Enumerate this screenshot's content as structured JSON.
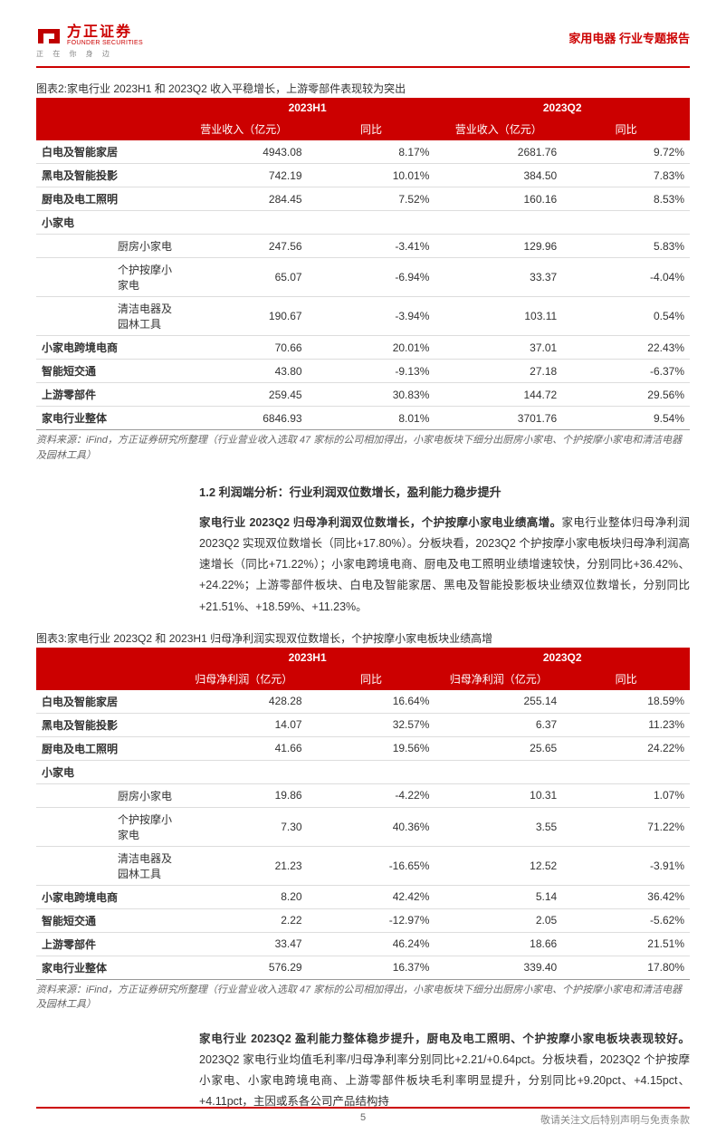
{
  "header": {
    "logo_cn": "方正证券",
    "logo_en": "FOUNDER SECURITIES",
    "logo_tagline": "正 在 你 身 边",
    "doc_type": "家用电器 行业专题报告"
  },
  "figure2": {
    "title": "图表2:家电行业 2023H1 和 2023Q2 收入平稳增长，上游零部件表现较为突出",
    "periods": [
      "2023H1",
      "2023Q2"
    ],
    "metrics": [
      "营业收入（亿元）",
      "同比",
      "营业收入（亿元）",
      "同比"
    ],
    "rows": [
      {
        "label": "白电及智能家居",
        "sub": false,
        "v": [
          "4943.08",
          "8.17%",
          "2681.76",
          "9.72%"
        ]
      },
      {
        "label": "黑电及智能投影",
        "sub": false,
        "v": [
          "742.19",
          "10.01%",
          "384.50",
          "7.83%"
        ]
      },
      {
        "label": "厨电及电工照明",
        "sub": false,
        "v": [
          "284.45",
          "7.52%",
          "160.16",
          "8.53%"
        ]
      },
      {
        "label": "小家电",
        "sub": false,
        "section": true,
        "v": [
          "",
          "",
          "",
          ""
        ]
      },
      {
        "label": "厨房小家电",
        "sub": true,
        "v": [
          "247.56",
          "-3.41%",
          "129.96",
          "5.83%"
        ]
      },
      {
        "label": "个护按摩小家电",
        "sub": true,
        "v": [
          "65.07",
          "-6.94%",
          "33.37",
          "-4.04%"
        ]
      },
      {
        "label": "清洁电器及园林工具",
        "sub": true,
        "v": [
          "190.67",
          "-3.94%",
          "103.11",
          "0.54%"
        ]
      },
      {
        "label": "小家电跨境电商",
        "sub": false,
        "v": [
          "70.66",
          "20.01%",
          "37.01",
          "22.43%"
        ]
      },
      {
        "label": "智能短交通",
        "sub": false,
        "v": [
          "43.80",
          "-9.13%",
          "27.18",
          "-6.37%"
        ]
      },
      {
        "label": "上游零部件",
        "sub": false,
        "v": [
          "259.45",
          "30.83%",
          "144.72",
          "29.56%"
        ]
      },
      {
        "label": "家电行业整体",
        "sub": false,
        "v": [
          "6846.93",
          "8.01%",
          "3701.76",
          "9.54%"
        ]
      }
    ],
    "source": "资料来源：iFind，方正证券研究所整理（行业营业收入选取 47 家标的公司相加得出，小家电板块下细分出厨房小家电、个护按摩小家电和清洁电器及园林工具）"
  },
  "section12": {
    "heading": "1.2 利润端分析：行业利润双位数增长，盈利能力稳步提升",
    "para1_bold": "家电行业 2023Q2 归母净利润双位数增长，个护按摩小家电业绩高增。",
    "para1_rest": "家电行业整体归母净利润 2023Q2 实现双位数增长（同比+17.80%）。分板块看，2023Q2 个护按摩小家电板块归母净利润高速增长（同比+71.22%）；小家电跨境电商、厨电及电工照明业绩增速较快，分别同比+36.42%、+24.22%；上游零部件板块、白电及智能家居、黑电及智能投影板块业绩双位数增长，分别同比+21.51%、+18.59%、+11.23%。"
  },
  "figure3": {
    "title": "图表3:家电行业 2023Q2 和 2023H1 归母净利润实现双位数增长，个护按摩小家电板块业绩高增",
    "periods": [
      "2023H1",
      "2023Q2"
    ],
    "metrics": [
      "归母净利润（亿元）",
      "同比",
      "归母净利润（亿元）",
      "同比"
    ],
    "rows": [
      {
        "label": "白电及智能家居",
        "sub": false,
        "v": [
          "428.28",
          "16.64%",
          "255.14",
          "18.59%"
        ]
      },
      {
        "label": "黑电及智能投影",
        "sub": false,
        "v": [
          "14.07",
          "32.57%",
          "6.37",
          "11.23%"
        ]
      },
      {
        "label": "厨电及电工照明",
        "sub": false,
        "v": [
          "41.66",
          "19.56%",
          "25.65",
          "24.22%"
        ]
      },
      {
        "label": "小家电",
        "sub": false,
        "section": true,
        "v": [
          "",
          "",
          "",
          ""
        ]
      },
      {
        "label": "厨房小家电",
        "sub": true,
        "v": [
          "19.86",
          "-4.22%",
          "10.31",
          "1.07%"
        ]
      },
      {
        "label": "个护按摩小家电",
        "sub": true,
        "v": [
          "7.30",
          "40.36%",
          "3.55",
          "71.22%"
        ]
      },
      {
        "label": "清洁电器及园林工具",
        "sub": true,
        "v": [
          "21.23",
          "-16.65%",
          "12.52",
          "-3.91%"
        ]
      },
      {
        "label": "小家电跨境电商",
        "sub": false,
        "v": [
          "8.20",
          "42.42%",
          "5.14",
          "36.42%"
        ]
      },
      {
        "label": "智能短交通",
        "sub": false,
        "v": [
          "2.22",
          "-12.97%",
          "2.05",
          "-5.62%"
        ]
      },
      {
        "label": "上游零部件",
        "sub": false,
        "v": [
          "33.47",
          "46.24%",
          "18.66",
          "21.51%"
        ]
      },
      {
        "label": "家电行业整体",
        "sub": false,
        "v": [
          "576.29",
          "16.37%",
          "339.40",
          "17.80%"
        ]
      }
    ],
    "source": "资料来源：iFind，方正证券研究所整理（行业营业收入选取 47 家标的公司相加得出，小家电板块下细分出厨房小家电、个护按摩小家电和清洁电器及园林工具）"
  },
  "section_after": {
    "para_bold": "家电行业 2023Q2 盈利能力整体稳步提升，厨电及电工照明、个护按摩小家电板块表现较好。",
    "para_rest": "2023Q2 家电行业均值毛利率/归母净利率分别同比+2.21/+0.64pct。分板块看，2023Q2 个护按摩小家电、小家电跨境电商、上游零部件板块毛利率明显提升，分别同比+9.20pct、+4.15pct、+4.11pct，主因或系各公司产品结构持"
  },
  "footer": {
    "page": "5",
    "disclaimer": "敬请关注文后特别声明与免责条款"
  },
  "colors": {
    "brand_red": "#c00000",
    "text": "#333333",
    "muted": "#666666",
    "border": "#dddddd"
  }
}
